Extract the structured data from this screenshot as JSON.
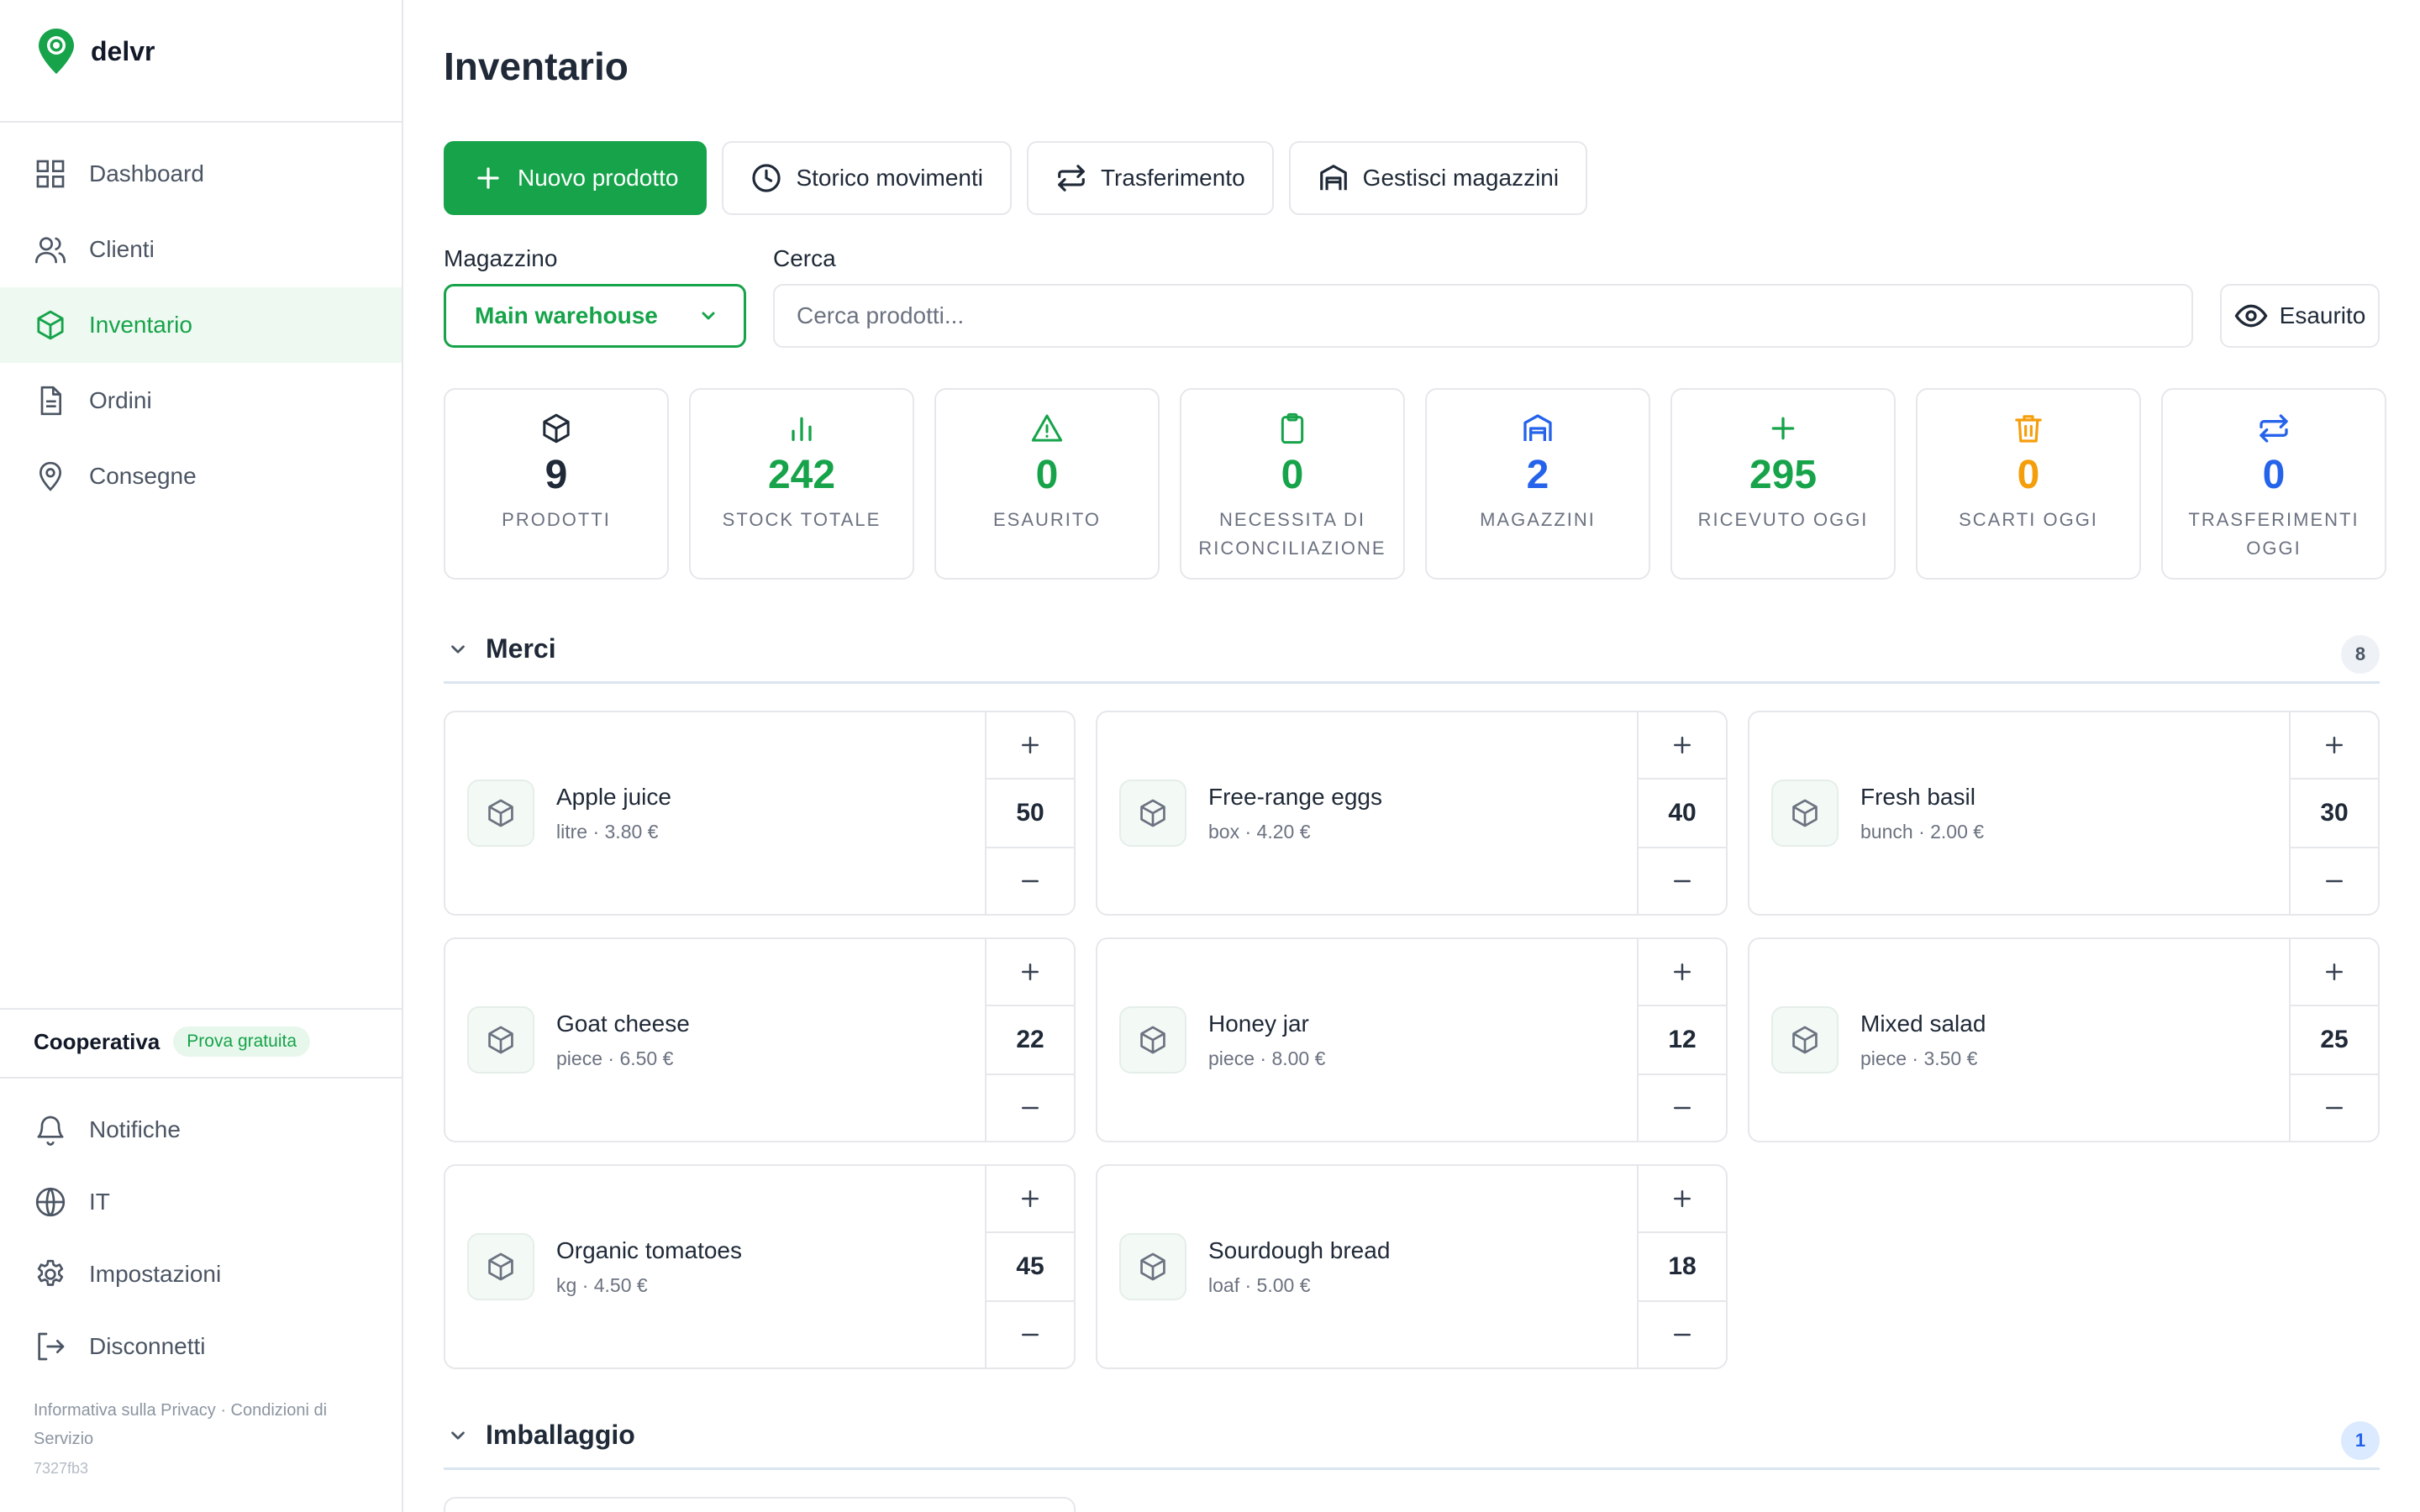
{
  "app": {
    "name": "delvr"
  },
  "sidebar": {
    "items": [
      {
        "label": "Dashboard",
        "icon": "grid-icon"
      },
      {
        "label": "Clienti",
        "icon": "users-icon"
      },
      {
        "label": "Inventario",
        "icon": "box-icon",
        "active": true
      },
      {
        "label": "Ordini",
        "icon": "document-icon"
      },
      {
        "label": "Consegne",
        "icon": "location-icon"
      }
    ],
    "org": {
      "name": "Cooperativa",
      "badge": "Prova gratuita"
    },
    "bottom": [
      {
        "label": "Notifiche",
        "icon": "bell-icon"
      },
      {
        "label": "IT",
        "icon": "globe-icon"
      },
      {
        "label": "Impostazioni",
        "icon": "gear-icon"
      },
      {
        "label": "Disconnetti",
        "icon": "logout-icon"
      }
    ],
    "legal": {
      "privacy": "Informativa sulla Privacy",
      "separator": "·",
      "terms": "Condizioni di Servizio"
    },
    "version": "7327fb3"
  },
  "main": {
    "title": "Inventario",
    "actions": {
      "new_product": "Nuovo prodotto",
      "history": "Storico movimenti",
      "transfer": "Trasferimento",
      "warehouses": "Gestisci magazzini"
    },
    "filters": {
      "warehouse_label": "Magazzino",
      "warehouse_value": "Main warehouse",
      "search_label": "Cerca",
      "search_placeholder": "Cerca prodotti...",
      "out_of_stock_toggle": "Esaurito"
    },
    "stats": [
      {
        "value": "9",
        "label": "PRODOTTI",
        "color": "#1f2937",
        "icon": "box-icon"
      },
      {
        "value": "242",
        "label": "STOCK TOTALE",
        "color": "#16a34a",
        "icon": "bar-chart-icon"
      },
      {
        "value": "0",
        "label": "ESAURITO",
        "color": "#16a34a",
        "icon": "warning-icon"
      },
      {
        "value": "0",
        "label": "NECESSITA DI RICONCILIAZIONE",
        "color": "#16a34a",
        "icon": "clipboard-icon"
      },
      {
        "value": "2",
        "label": "MAGAZZINI",
        "color": "#2563eb",
        "icon": "warehouse-icon"
      },
      {
        "value": "295",
        "label": "RICEVUTO OGGI",
        "color": "#16a34a",
        "icon": "plus-icon"
      },
      {
        "value": "0",
        "label": "SCARTI OGGI",
        "color": "#f59e0b",
        "icon": "trash-icon"
      },
      {
        "value": "0",
        "label": "TRASFERIMENTI OGGI",
        "color": "#2563eb",
        "icon": "transfer-icon"
      }
    ],
    "sections": [
      {
        "title": "Merci",
        "count": "8",
        "items": [
          {
            "name": "Apple juice",
            "unit": "litre",
            "sep": "·",
            "price": "3.80 €",
            "qty": "50"
          },
          {
            "name": "Free-range eggs",
            "unit": "box",
            "sep": "·",
            "price": "4.20 €",
            "qty": "40"
          },
          {
            "name": "Fresh basil",
            "unit": "bunch",
            "sep": "·",
            "price": "2.00 €",
            "qty": "30"
          },
          {
            "name": "Goat cheese",
            "unit": "piece",
            "sep": "·",
            "price": "6.50 €",
            "qty": "22"
          },
          {
            "name": "Honey jar",
            "unit": "piece",
            "sep": "·",
            "price": "8.00 €",
            "qty": "12"
          },
          {
            "name": "Mixed salad",
            "unit": "piece",
            "sep": "·",
            "price": "3.50 €",
            "qty": "25"
          },
          {
            "name": "Organic tomatoes",
            "unit": "kg",
            "sep": "·",
            "price": "4.50 €",
            "qty": "45"
          },
          {
            "name": "Sourdough bread",
            "unit": "loaf",
            "sep": "·",
            "price": "5.00 €",
            "qty": "18"
          }
        ]
      },
      {
        "title": "Imballaggio",
        "count": "1",
        "items": []
      }
    ]
  }
}
